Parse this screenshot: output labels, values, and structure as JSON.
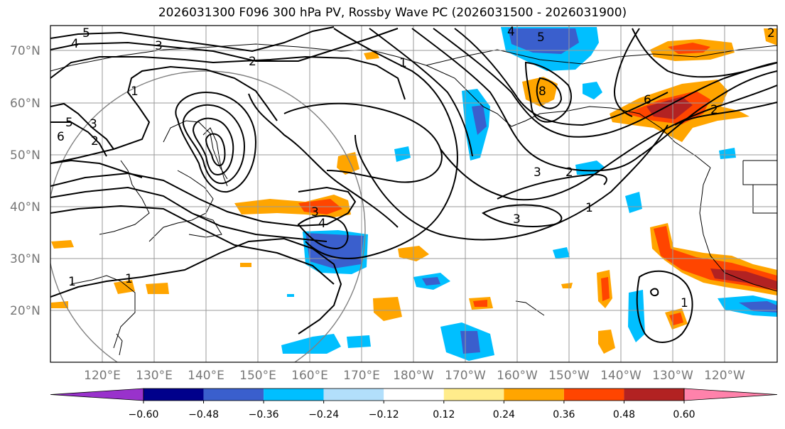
{
  "title": "2026031300 F096 300 hPa PV, Rossby Wave PC (2026031500 - 2026031900)",
  "lat_labels": [
    "70°N",
    "60°N",
    "50°N",
    "40°N",
    "30°N",
    "20°N"
  ],
  "lon_labels": [
    "120°E",
    "130°E",
    "140°E",
    "150°E",
    "160°E",
    "170°E",
    "180°W",
    "170°W",
    "160°W",
    "150°W",
    "140°W",
    "130°W",
    "120°W"
  ],
  "contour_labels": [
    "5",
    "4",
    "3",
    "2",
    "1",
    "1",
    "2",
    "3",
    "3",
    "2",
    "1",
    "3",
    "4",
    "1",
    "4",
    "5",
    "8",
    "2",
    "6",
    "1",
    "6",
    "5",
    "3",
    "2",
    "1"
  ],
  "colorbar": {
    "ticks": [
      "−0.60",
      "−0.48",
      "−0.36",
      "−0.24",
      "−0.12",
      "0.12",
      "0.24",
      "0.36",
      "0.48",
      "0.60"
    ],
    "colors": [
      "#9932cc",
      "#00008b",
      "#3a5fcd",
      "#00bfff",
      "#b2dffb",
      "#ffffff",
      "#ffec8b",
      "#ffa500",
      "#ff4500",
      "#b22222",
      "#ff82ab"
    ]
  }
}
